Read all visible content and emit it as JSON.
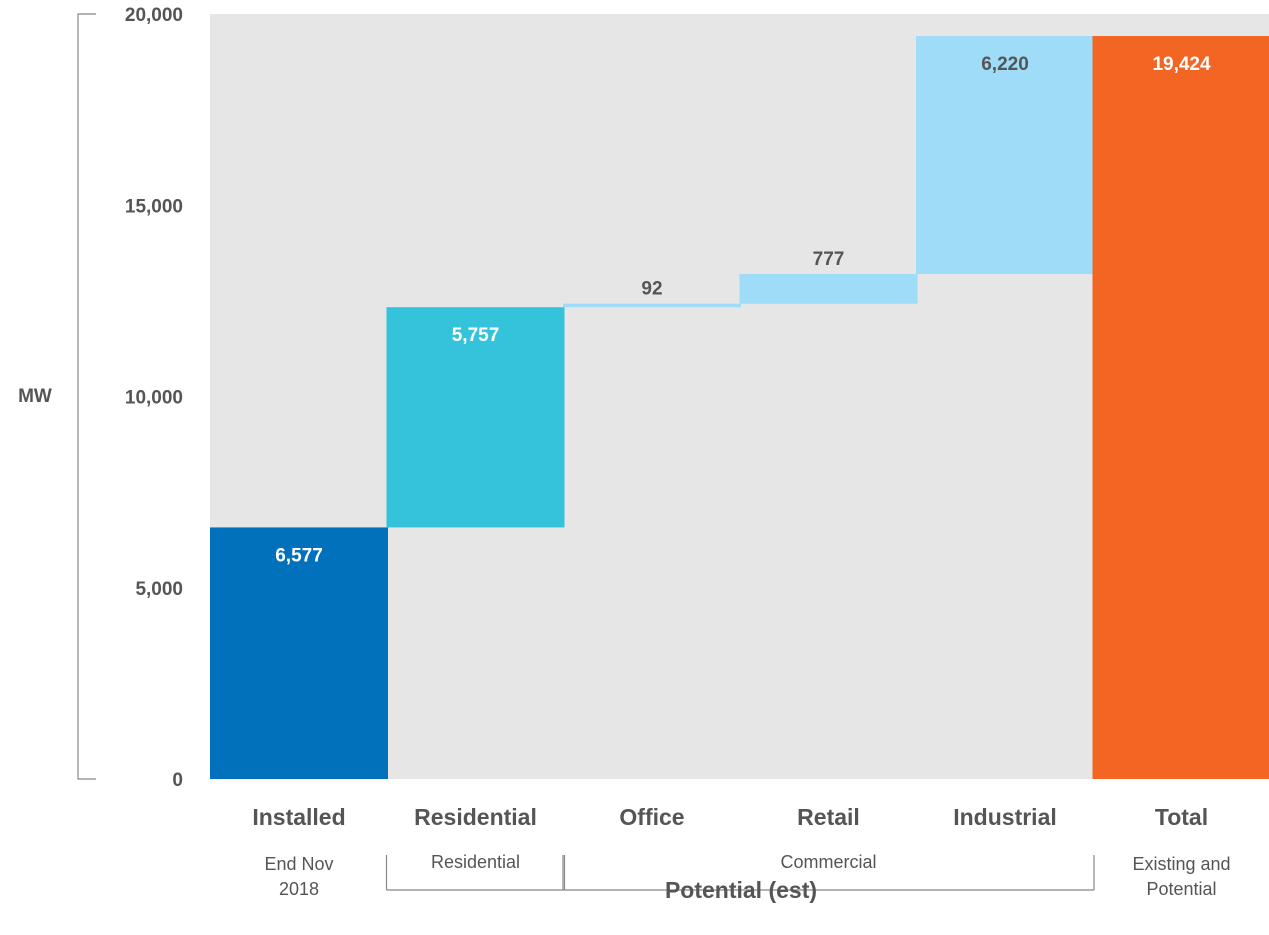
{
  "chart_data": {
    "type": "bar",
    "subtype": "waterfall",
    "ylabel": "MW",
    "ylim": [
      0,
      20000
    ],
    "yticks": [
      "0",
      "5,000",
      "10,000",
      "15,000",
      "20,000"
    ],
    "ytick_values": [
      0,
      5000,
      10000,
      15000,
      20000
    ],
    "categories": [
      "Installed",
      "Residential",
      "Office",
      "Retail",
      "Industrial",
      "Total"
    ],
    "values": [
      6577,
      5757,
      92,
      777,
      6220,
      19424
    ],
    "data_labels": [
      "6,577",
      "5,757",
      "92",
      "777",
      "6,220",
      "19,424"
    ],
    "bar_kind": [
      "base",
      "increment",
      "increment",
      "increment",
      "increment",
      "total"
    ],
    "colors": [
      "#0071BA",
      "#35C2DB",
      "#9EDCF7",
      "#9EDCF7",
      "#9EDCF7",
      "#F26522"
    ],
    "label_colors": [
      "#FFFFFF",
      "#FFFFFF",
      "#555555",
      "#555555",
      "#555555",
      "#FFFFFF"
    ],
    "background_color": "#E6E6E6",
    "groups": [
      {
        "label": [
          "End Nov",
          "2018"
        ],
        "from": 0,
        "to": 0,
        "bracket": false
      },
      {
        "label": [
          "Residential"
        ],
        "from": 1,
        "to": 1,
        "bracket": true
      },
      {
        "label": [
          "Commercial"
        ],
        "from": 2,
        "to": 4,
        "bracket": true
      },
      {
        "label": [
          "Existing and",
          "Potential"
        ],
        "from": 5,
        "to": 5,
        "bracket": false
      }
    ],
    "group_title": "Potential (est)",
    "grid": false,
    "legend": "none"
  }
}
